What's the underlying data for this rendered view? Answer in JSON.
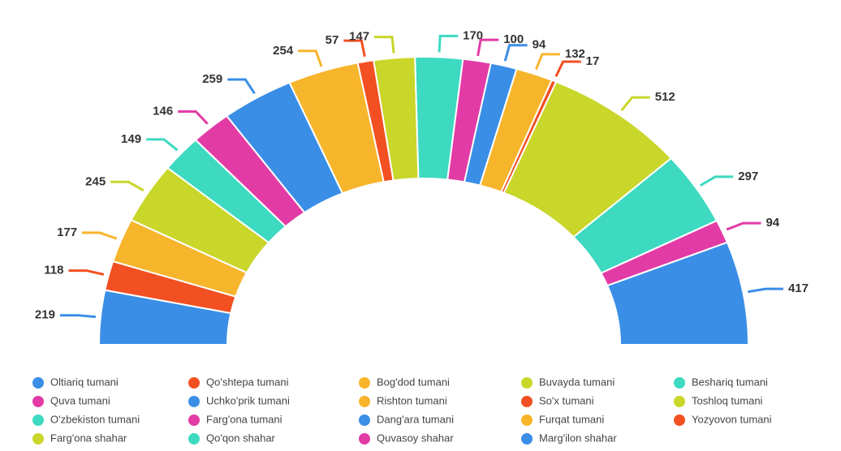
{
  "chart_data": {
    "type": "pie",
    "half": true,
    "categories": [
      "Oltiariq tumani",
      "Qo'shtepa tumani",
      "Bog'dod tumani",
      "Buvayda tumani",
      "Beshariq tumani",
      "Quva tumani",
      "Uchko'prik tumani",
      "Rishton tumani",
      "So'x tumani",
      "Toshloq tumani",
      "O'zbekiston tumani",
      "Farg'ona tumani",
      "Dang'ara tumani",
      "Furqat tumani",
      "Yozyovon tumani",
      "Farg'ona shahar",
      "Qo'qon shahar",
      "Quvasoy shahar",
      "Marg'ilon shahar"
    ],
    "values": [
      219,
      118,
      177,
      245,
      149,
      146,
      259,
      254,
      57,
      147,
      170,
      100,
      94,
      132,
      17,
      512,
      297,
      94,
      417
    ],
    "colors": [
      "#3a8ee6",
      "#f25022",
      "#f7b52c",
      "#c9d62a",
      "#3dd9c1",
      "#e23ba6",
      "#3a8ee6",
      "#f7b52c",
      "#f25022",
      "#c9d62a",
      "#3dd9c1",
      "#e23ba6",
      "#3a8ee6",
      "#f7b52c",
      "#f25022",
      "#c9d62a",
      "#3dd9c1",
      "#e23ba6",
      "#3a8ee6"
    ],
    "legend": "bottom"
  }
}
